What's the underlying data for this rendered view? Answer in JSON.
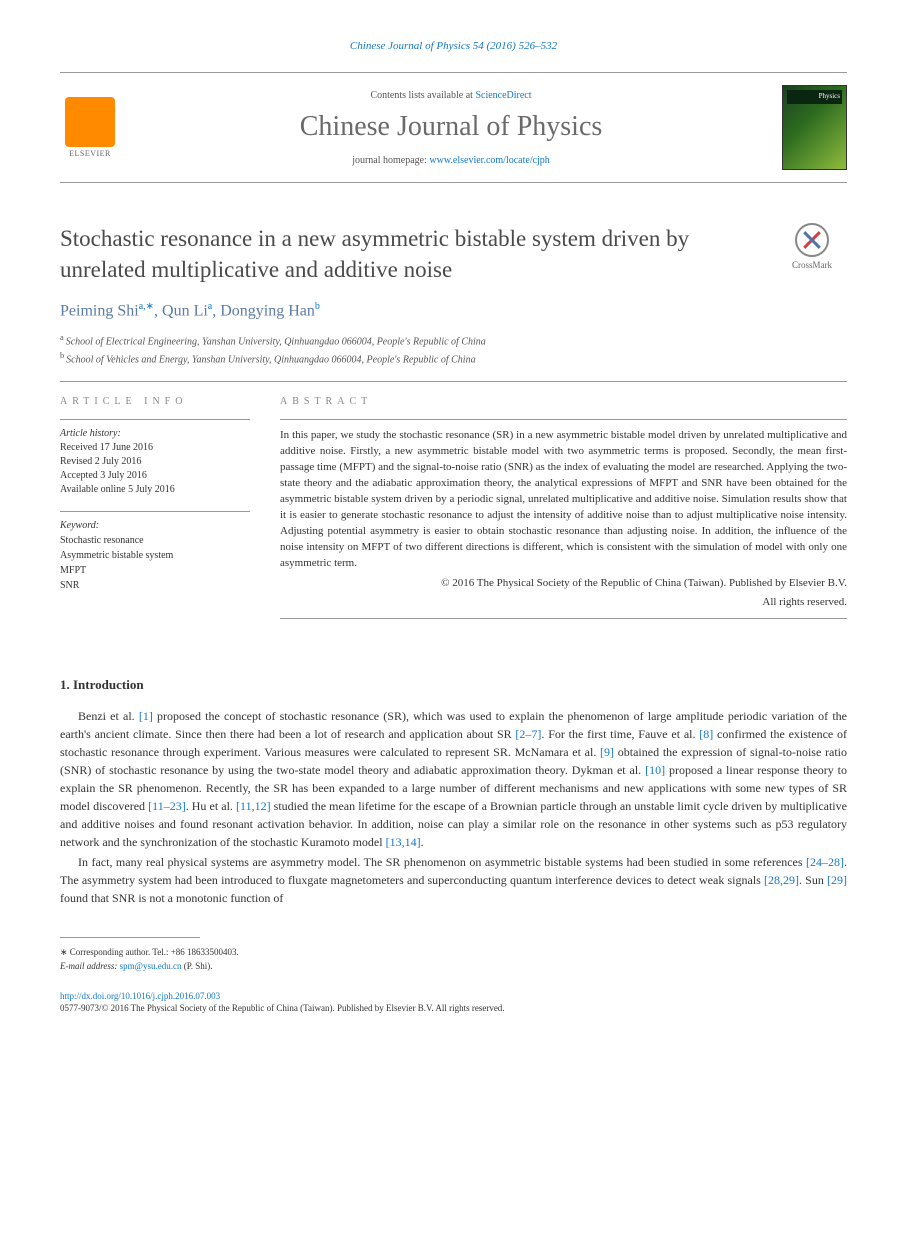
{
  "top_journal_ref": "Chinese Journal of Physics 54 (2016) 526–532",
  "header": {
    "publisher": "ELSEVIER",
    "contents_prefix": "Contents lists available at ",
    "contents_link": "ScienceDirect",
    "journal_title": "Chinese Journal of Physics",
    "homepage_prefix": "journal homepage: ",
    "homepage_url": "www.elsevier.com/locate/cjph",
    "cover_label": "Physics"
  },
  "article": {
    "title": "Stochastic resonance in a new asymmetric bistable system driven by unrelated multiplicative and additive noise",
    "crossmark": "CrossMark",
    "authors_html": "Peiming Shi|a,*|, Qun Li|a|, Dongying Han|b|",
    "author_1": "Peiming Shi",
    "author_1_sup": "a,∗",
    "author_2": "Qun Li",
    "author_2_sup": "a",
    "author_3": "Dongying Han",
    "author_3_sup": "b",
    "affiliations": [
      {
        "sup": "a",
        "text": "School of Electrical Engineering, Yanshan University, Qinhuangdao 066004, People's Republic of China"
      },
      {
        "sup": "b",
        "text": "School of Vehicles and Energy, Yanshan University, Qinhuangdao 066004, People's Republic of China"
      }
    ]
  },
  "info": {
    "heading": "ARTICLE INFO",
    "history_label": "Article history:",
    "history": [
      "Received 17 June 2016",
      "Revised 2 July 2016",
      "Accepted 3 July 2016",
      "Available online 5 July 2016"
    ],
    "keyword_label": "Keyword:",
    "keywords": [
      "Stochastic resonance",
      "Asymmetric bistable system",
      "MFPT",
      "SNR"
    ]
  },
  "abstract": {
    "heading": "ABSTRACT",
    "text": "In this paper, we study the stochastic resonance (SR) in a new asymmetric bistable model driven by unrelated multiplicative and additive noise. Firstly, a new asymmetric bistable model with two asymmetric terms is proposed. Secondly, the mean first-passage time (MFPT) and the signal-to-noise ratio (SNR) as the index of evaluating the model are researched. Applying the two-state theory and the adiabatic approximation theory, the analytical expressions of MFPT and SNR have been obtained for the asymmetric bistable system driven by a periodic signal, unrelated multiplicative and additive noise. Simulation results show that it is easier to generate stochastic resonance to adjust the intensity of additive noise than to adjust multiplicative noise intensity. Adjusting potential asymmetry is easier to obtain stochastic resonance than adjusting noise. In addition, the influence of the noise intensity on MFPT of two different directions is different, which is consistent with the simulation of model with only one asymmetric term.",
    "copyright_1": "© 2016 The Physical Society of the Republic of China (Taiwan). Published by Elsevier B.V.",
    "copyright_2": "All rights reserved."
  },
  "intro": {
    "heading": "1. Introduction",
    "p1_a": "Benzi et al. ",
    "p1_r1": "[1]",
    "p1_b": " proposed the concept of stochastic resonance (SR), which was used to explain the phenomenon of large amplitude periodic variation of the earth's ancient climate. Since then there had been a lot of research and application about SR ",
    "p1_r2": "[2–7]",
    "p1_c": ". For the first time, Fauve et al. ",
    "p1_r3": "[8]",
    "p1_d": " confirmed the existence of stochastic resonance through experiment. Various measures were calculated to represent SR. McNamara et al. ",
    "p1_r4": "[9]",
    "p1_e": " obtained the expression of signal-to-noise ratio (SNR) of stochastic resonance by using the two-state model theory and adiabatic approximation theory. Dykman et al. ",
    "p1_r5": "[10]",
    "p1_f": " proposed a linear response theory to explain the SR phenomenon. Recently, the SR has been expanded to a large number of different mechanisms and new applications with some new types of SR model discovered ",
    "p1_r6": "[11–23]",
    "p1_g": ". Hu et al. ",
    "p1_r7": "[11,12]",
    "p1_h": " studied the mean lifetime for the escape of a Brownian particle through an unstable limit cycle driven by multiplicative and additive noises and found resonant activation behavior. In addition, noise can play a similar role on the resonance in other systems such as p53 regulatory network and the synchronization of the stochastic Kuramoto model ",
    "p1_r8": "[13,14]",
    "p1_i": ".",
    "p2_a": "In fact, many real physical systems are asymmetry model. The SR phenomenon on asymmetric bistable systems had been studied in some references ",
    "p2_r1": "[24–28]",
    "p2_b": ". The asymmetry system had been introduced to fluxgate magnetometers and superconducting quantum interference devices to detect weak signals ",
    "p2_r2": "[28,29]",
    "p2_c": ". Sun ",
    "p2_r3": "[29]",
    "p2_d": " found that SNR is not a monotonic function of"
  },
  "footnote": {
    "corr_label": "∗   Corresponding author. Tel.: +86 18633500403.",
    "email_label": "E-mail address: ",
    "email": "spm@ysu.edu.cn",
    "email_suffix": " (P. Shi)."
  },
  "footer": {
    "doi": "http://dx.doi.org/10.1016/j.cjph.2016.07.003",
    "issn": "0577-9073/© 2016 The Physical Society of the Republic of China (Taiwan). Published by Elsevier B.V. All rights reserved."
  }
}
